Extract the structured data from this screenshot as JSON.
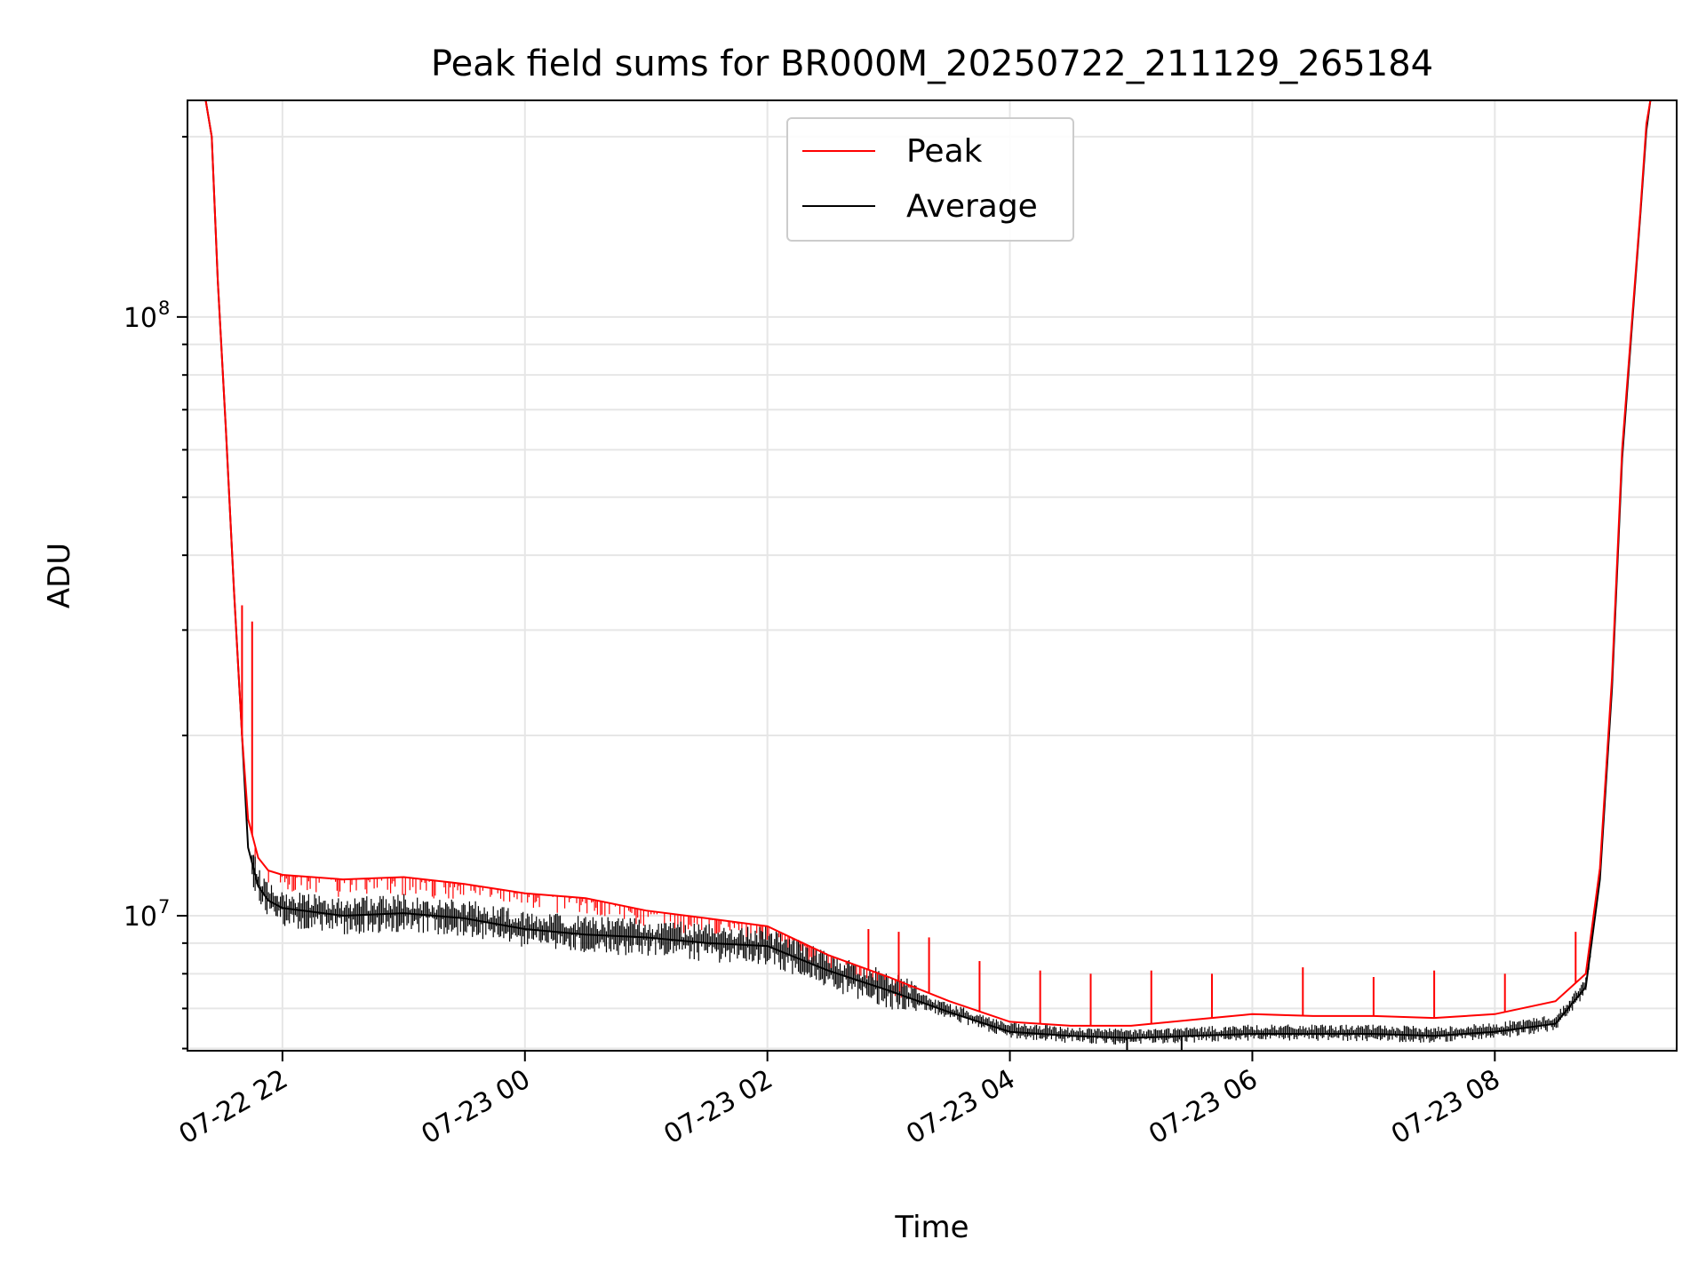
{
  "chart_data": {
    "type": "line",
    "title": "Peak field sums for BR000M_20250722_211129_265184",
    "xlabel": "Time",
    "ylabel": "ADU",
    "y_scale": "log",
    "ylim": [
      5950000,
      230000000
    ],
    "xlim": [
      "2025-07-22 21:13",
      "2025-07-23 09:30"
    ],
    "x_ticks": [
      {
        "value": "2025-07-22 22:00",
        "label": "07-22 22"
      },
      {
        "value": "2025-07-23 00:00",
        "label": "07-23 00"
      },
      {
        "value": "2025-07-23 02:00",
        "label": "07-23 02"
      },
      {
        "value": "2025-07-23 04:00",
        "label": "07-23 04"
      },
      {
        "value": "2025-07-23 06:00",
        "label": "07-23 06"
      },
      {
        "value": "2025-07-23 08:00",
        "label": "07-23 08"
      }
    ],
    "y_ticks": [
      {
        "value": 10000000,
        "base": "10",
        "exp": "7"
      },
      {
        "value": 100000000,
        "base": "10",
        "exp": "8"
      }
    ],
    "grid": true,
    "legend_position": "top-center",
    "series": [
      {
        "name": "Peak",
        "color": "#ff0000",
        "x": [
          "2025-07-22 21:13",
          "2025-07-22 21:22",
          "2025-07-22 21:25",
          "2025-07-22 21:28",
          "2025-07-22 21:32",
          "2025-07-22 21:36",
          "2025-07-22 21:40",
          "2025-07-22 21:43",
          "2025-07-22 21:48",
          "2025-07-22 21:53",
          "2025-07-22 22:00",
          "2025-07-22 22:30",
          "2025-07-22 23:00",
          "2025-07-22 23:30",
          "2025-07-23 00:00",
          "2025-07-23 00:30",
          "2025-07-23 01:00",
          "2025-07-23 01:30",
          "2025-07-23 02:00",
          "2025-07-23 02:30",
          "2025-07-23 03:00",
          "2025-07-23 03:30",
          "2025-07-23 04:00",
          "2025-07-23 04:30",
          "2025-07-23 05:00",
          "2025-07-23 05:30",
          "2025-07-23 06:00",
          "2025-07-23 06:30",
          "2025-07-23 07:00",
          "2025-07-23 07:30",
          "2025-07-23 08:00",
          "2025-07-23 08:30",
          "2025-07-23 08:45",
          "2025-07-23 08:52",
          "2025-07-23 08:58",
          "2025-07-23 09:03",
          "2025-07-23 09:08",
          "2025-07-23 09:12",
          "2025-07-23 09:15",
          "2025-07-23 09:17",
          "2025-07-23 09:20",
          "2025-07-23 09:23"
        ],
        "y": [
          230000000,
          230000000,
          200000000,
          115000000,
          65000000,
          35000000,
          20000000,
          14500000,
          12500000,
          11900000,
          11700000,
          11500000,
          11600000,
          11300000,
          10900000,
          10700000,
          10200000,
          9900000,
          9600000,
          8600000,
          7900000,
          7200000,
          6650000,
          6550000,
          6550000,
          6700000,
          6850000,
          6800000,
          6800000,
          6750000,
          6850000,
          7200000,
          8000000,
          12000000,
          25000000,
          60000000,
          100000000,
          150000000,
          210000000,
          230000000,
          230000000,
          230000000
        ]
      },
      {
        "name": "Average",
        "color": "#000000",
        "x": [
          "2025-07-22 21:13",
          "2025-07-22 21:22",
          "2025-07-22 21:25",
          "2025-07-22 21:28",
          "2025-07-22 21:32",
          "2025-07-22 21:36",
          "2025-07-22 21:40",
          "2025-07-22 21:43",
          "2025-07-22 21:48",
          "2025-07-22 21:53",
          "2025-07-22 22:00",
          "2025-07-22 22:30",
          "2025-07-22 23:00",
          "2025-07-22 23:30",
          "2025-07-23 00:00",
          "2025-07-23 00:30",
          "2025-07-23 01:00",
          "2025-07-23 01:30",
          "2025-07-23 02:00",
          "2025-07-23 02:30",
          "2025-07-23 03:00",
          "2025-07-23 03:30",
          "2025-07-23 04:00",
          "2025-07-23 04:30",
          "2025-07-23 05:00",
          "2025-07-23 05:30",
          "2025-07-23 06:00",
          "2025-07-23 06:30",
          "2025-07-23 07:00",
          "2025-07-23 07:30",
          "2025-07-23 08:00",
          "2025-07-23 08:30",
          "2025-07-23 08:45",
          "2025-07-23 08:52",
          "2025-07-23 08:58",
          "2025-07-23 09:03",
          "2025-07-23 09:08",
          "2025-07-23 09:12",
          "2025-07-23 09:15",
          "2025-07-23 09:17",
          "2025-07-23 09:20",
          "2025-07-23 09:23"
        ],
        "y": [
          230000000,
          230000000,
          200000000,
          115000000,
          65000000,
          35000000,
          20000000,
          13000000,
          11200000,
          10600000,
          10300000,
          10000000,
          10100000,
          9900000,
          9500000,
          9300000,
          9200000,
          9000000,
          8900000,
          8100000,
          7500000,
          6900000,
          6400000,
          6300000,
          6250000,
          6300000,
          6350000,
          6350000,
          6350000,
          6300000,
          6400000,
          6600000,
          7600000,
          11500000,
          24000000,
          58000000,
          98000000,
          148000000,
          205000000,
          230000000,
          230000000,
          230000000
        ]
      }
    ],
    "spikes": [
      {
        "series": "Peak",
        "x": "2025-07-22 21:40",
        "y": 33000000
      },
      {
        "series": "Peak",
        "x": "2025-07-22 21:45",
        "y": 31000000
      },
      {
        "series": "Peak",
        "x": "2025-07-23 02:50",
        "y": 9500000
      },
      {
        "series": "Peak",
        "x": "2025-07-23 03:05",
        "y": 9400000
      },
      {
        "series": "Peak",
        "x": "2025-07-23 03:20",
        "y": 9200000
      },
      {
        "series": "Peak",
        "x": "2025-07-23 03:45",
        "y": 8400000
      },
      {
        "series": "Peak",
        "x": "2025-07-23 04:15",
        "y": 8100000
      },
      {
        "series": "Peak",
        "x": "2025-07-23 04:40",
        "y": 8000000
      },
      {
        "series": "Peak",
        "x": "2025-07-23 05:10",
        "y": 8100000
      },
      {
        "series": "Peak",
        "x": "2025-07-23 05:40",
        "y": 8000000
      },
      {
        "series": "Peak",
        "x": "2025-07-23 06:25",
        "y": 8200000
      },
      {
        "series": "Peak",
        "x": "2025-07-23 07:00",
        "y": 7900000
      },
      {
        "series": "Peak",
        "x": "2025-07-23 07:30",
        "y": 8100000
      },
      {
        "series": "Peak",
        "x": "2025-07-23 08:05",
        "y": 8000000
      },
      {
        "series": "Peak",
        "x": "2025-07-23 08:40",
        "y": 9400000
      },
      {
        "series": "Average",
        "x": "2025-07-23 04:58",
        "y": 5950000
      },
      {
        "series": "Average",
        "x": "2025-07-23 05:25",
        "y": 5950000
      }
    ]
  }
}
